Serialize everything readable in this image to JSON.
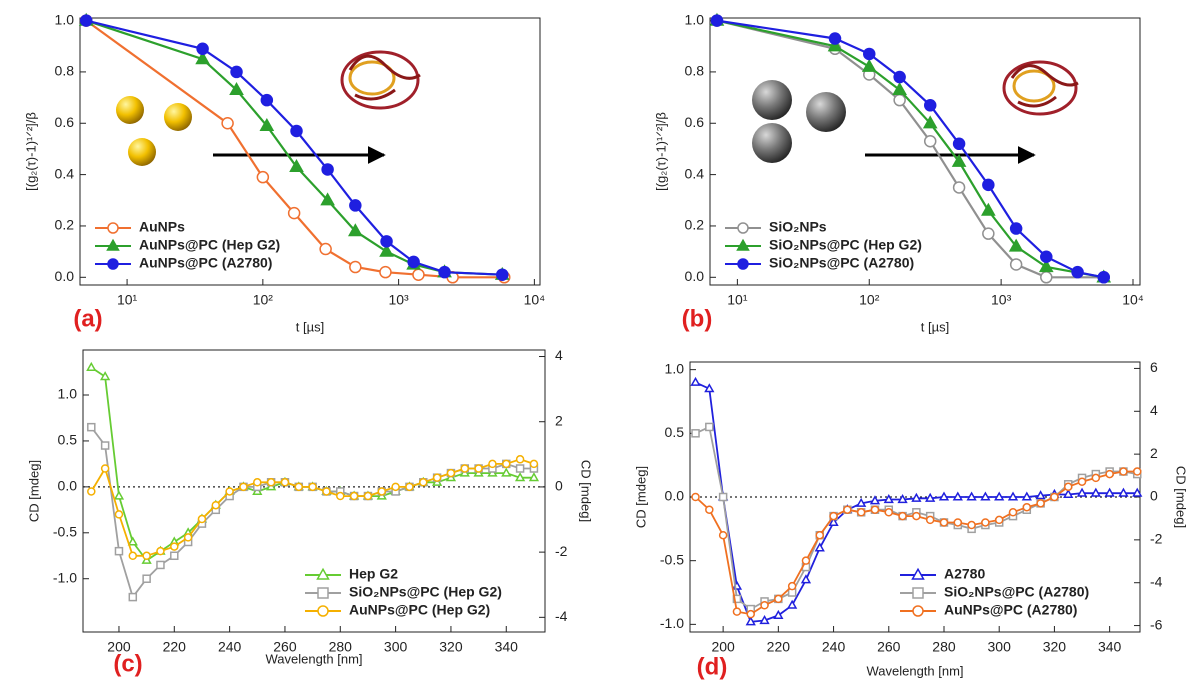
{
  "chart_data": [
    {
      "type": "line",
      "label": "(a)",
      "xlabel": "t [µs]",
      "ylabel": "[(g₂(τ)-1)¹ᐟ²]/β",
      "xscale": "log",
      "xlim": [
        4.5,
        11000
      ],
      "ylim": [
        -0.03,
        1.01
      ],
      "xticks": [
        {
          "value": 10,
          "label": "10¹"
        },
        {
          "value": 100,
          "label": "10²"
        },
        {
          "value": 1000,
          "label": "10³"
        },
        {
          "value": 10000,
          "label": "10⁴"
        }
      ],
      "yticks": [
        {
          "value": 0,
          "label": "0.0"
        },
        {
          "value": 0.2,
          "label": "0.2"
        },
        {
          "value": 0.4,
          "label": "0.4"
        },
        {
          "value": 0.6,
          "label": "0.6"
        },
        {
          "value": 0.8,
          "label": "0.8"
        },
        {
          "value": 1,
          "label": "1.0"
        }
      ],
      "legend": "lower left",
      "series": [
        {
          "name": "AuNPs",
          "color": "#f07030",
          "marker": "circle-open",
          "x": [
            5,
            55,
            100,
            170,
            290,
            480,
            800,
            1400,
            2500,
            6000
          ],
          "values": [
            1.0,
            0.6,
            0.39,
            0.25,
            0.11,
            0.04,
            0.02,
            0.01,
            0.0,
            0.0
          ]
        },
        {
          "name": "AuNPs@PC (Hep G2)",
          "color": "#2ca02c",
          "marker": "triangle",
          "x": [
            5,
            36,
            64,
            107,
            177,
            300,
            480,
            815,
            1290,
            2180,
            5800
          ],
          "values": [
            1.0,
            0.85,
            0.73,
            0.59,
            0.43,
            0.3,
            0.18,
            0.1,
            0.05,
            0.02,
            0.01
          ]
        },
        {
          "name": "AuNPs@PC (A2780)",
          "color": "#1f1fe0",
          "marker": "circle",
          "x": [
            5,
            36,
            64,
            107,
            177,
            300,
            480,
            815,
            1290,
            2180,
            5800
          ],
          "values": [
            1.0,
            0.89,
            0.8,
            0.69,
            0.57,
            0.42,
            0.28,
            0.14,
            0.06,
            0.02,
            0.01
          ]
        }
      ]
    },
    {
      "type": "line",
      "label": "(b)",
      "xlabel": "t [µs]",
      "ylabel": "[(g₂(τ)-1)¹ᐟ²]/β",
      "xscale": "log",
      "xlim": [
        6.2,
        11300
      ],
      "ylim": [
        -0.03,
        1.01
      ],
      "xticks": [
        {
          "value": 10,
          "label": "10¹"
        },
        {
          "value": 100,
          "label": "10²"
        },
        {
          "value": 1000,
          "label": "10³"
        },
        {
          "value": 10000,
          "label": "10⁴"
        }
      ],
      "yticks": [
        {
          "value": 0,
          "label": "0.0"
        },
        {
          "value": 0.2,
          "label": "0.2"
        },
        {
          "value": 0.4,
          "label": "0.4"
        },
        {
          "value": 0.6,
          "label": "0.6"
        },
        {
          "value": 0.8,
          "label": "0.8"
        },
        {
          "value": 1,
          "label": "1.0"
        }
      ],
      "legend": "lower left",
      "series": [
        {
          "name": "SiO₂NPs",
          "color": "#909090",
          "marker": "circle-open",
          "x": [
            7,
            55,
            100,
            170,
            290,
            480,
            800,
            1300,
            2200,
            6000
          ],
          "values": [
            1.0,
            0.89,
            0.79,
            0.69,
            0.53,
            0.35,
            0.17,
            0.05,
            0.0,
            0.0
          ]
        },
        {
          "name": "SiO₂NPs@PC (Hep G2)",
          "color": "#2ca02c",
          "marker": "triangle",
          "x": [
            7,
            55,
            100,
            170,
            290,
            480,
            800,
            1300,
            2200,
            6000
          ],
          "values": [
            1.0,
            0.9,
            0.82,
            0.73,
            0.6,
            0.45,
            0.26,
            0.12,
            0.04,
            0.0
          ]
        },
        {
          "name": "SiO₂NPs@PC (A2780)",
          "color": "#1f1fe0",
          "marker": "circle",
          "x": [
            7,
            55,
            100,
            170,
            290,
            480,
            800,
            1300,
            2200,
            3800,
            6000
          ],
          "values": [
            1.0,
            0.93,
            0.87,
            0.78,
            0.67,
            0.52,
            0.36,
            0.19,
            0.08,
            0.02,
            0.0
          ]
        }
      ]
    },
    {
      "type": "line",
      "label": "(c)",
      "xlabel": "Wavelength [nm]",
      "ylabel": "CD [mdeg]",
      "y2label": "CD [mdeg]",
      "xlim": [
        187,
        354
      ],
      "ylim": [
        -1.58,
        1.49
      ],
      "y2lim": [
        -4.45,
        4.2
      ],
      "zero_line": true,
      "xticks": [
        200,
        220,
        240,
        260,
        280,
        300,
        320,
        340
      ],
      "yticks": [
        {
          "value": -1,
          "label": "-1.0"
        },
        {
          "value": -0.5,
          "label": "-0.5"
        },
        {
          "value": 0,
          "label": "0.0"
        },
        {
          "value": 0.5,
          "label": "0.5"
        },
        {
          "value": 1,
          "label": "1.0"
        }
      ],
      "y2ticks": [
        -4,
        -2,
        0,
        2,
        4
      ],
      "legend": "lower right",
      "x": [
        190,
        195,
        200,
        205,
        210,
        215,
        220,
        225,
        230,
        235,
        240,
        245,
        250,
        255,
        260,
        265,
        270,
        275,
        280,
        285,
        290,
        295,
        300,
        305,
        310,
        315,
        320,
        325,
        330,
        335,
        340,
        345,
        350
      ],
      "series": [
        {
          "name": "Hep G2",
          "color": "#66cc33",
          "marker": "triangle-open",
          "values": [
            1.3,
            1.2,
            -0.1,
            -0.6,
            -0.8,
            -0.7,
            -0.6,
            -0.5,
            -0.35,
            -0.2,
            -0.05,
            0.0,
            -0.05,
            0.0,
            0.05,
            0.0,
            0.0,
            -0.05,
            -0.05,
            -0.1,
            -0.1,
            -0.1,
            -0.05,
            0.0,
            0.05,
            0.05,
            0.1,
            0.15,
            0.15,
            0.15,
            0.15,
            0.1,
            0.1
          ]
        },
        {
          "name": "SiO₂NPs@PC (Hep G2)",
          "color": "#a0a0a0",
          "marker": "square-open",
          "values": [
            0.65,
            0.45,
            -0.7,
            -1.2,
            -1.0,
            -0.85,
            -0.75,
            -0.6,
            -0.4,
            -0.25,
            -0.1,
            0.0,
            0.0,
            0.05,
            0.05,
            0.0,
            0.0,
            -0.05,
            -0.05,
            -0.1,
            -0.1,
            -0.05,
            -0.05,
            0.0,
            0.05,
            0.1,
            0.15,
            0.2,
            0.2,
            0.2,
            0.25,
            0.2,
            0.2
          ]
        },
        {
          "name": "AuNPs@PC (Hep G2)",
          "color": "#f5b000",
          "marker": "circle-open",
          "values": [
            -0.05,
            0.2,
            -0.3,
            -0.75,
            -0.75,
            -0.7,
            -0.65,
            -0.55,
            -0.35,
            -0.2,
            -0.05,
            0.0,
            0.05,
            0.05,
            0.05,
            0.0,
            0.0,
            -0.05,
            -0.1,
            -0.1,
            -0.1,
            -0.05,
            0.0,
            0.0,
            0.05,
            0.1,
            0.15,
            0.2,
            0.2,
            0.25,
            0.25,
            0.3,
            0.25
          ]
        }
      ]
    },
    {
      "type": "line",
      "label": "(d)",
      "xlabel": "Wavelength [nm]",
      "ylabel": "CD [mdeg]",
      "y2label": "CD [mdeg]",
      "xlim": [
        188,
        351
      ],
      "ylim": [
        -1.06,
        1.06
      ],
      "y2lim": [
        -6.3,
        6.3
      ],
      "zero_line": true,
      "xticks": [
        200,
        220,
        240,
        260,
        280,
        300,
        320,
        340
      ],
      "yticks": [
        {
          "value": -1,
          "label": "-1.0"
        },
        {
          "value": -0.5,
          "label": "-0.5"
        },
        {
          "value": 0,
          "label": "0.0"
        },
        {
          "value": 0.5,
          "label": "0.5"
        },
        {
          "value": 1,
          "label": "1.0"
        }
      ],
      "y2ticks": [
        -6,
        -4,
        -2,
        0,
        2,
        4,
        6
      ],
      "legend": "lower right",
      "x": [
        190,
        195,
        200,
        205,
        210,
        215,
        220,
        225,
        230,
        235,
        240,
        245,
        250,
        255,
        260,
        265,
        270,
        275,
        280,
        285,
        290,
        295,
        300,
        305,
        310,
        315,
        320,
        325,
        330,
        335,
        340,
        345,
        350
      ],
      "series": [
        {
          "name": "A2780",
          "color": "#2020dd",
          "marker": "triangle-open",
          "values": [
            0.9,
            0.85,
            0.0,
            -0.7,
            -0.98,
            -0.97,
            -0.93,
            -0.85,
            -0.65,
            -0.4,
            -0.2,
            -0.1,
            -0.05,
            -0.03,
            -0.02,
            -0.02,
            -0.01,
            -0.01,
            0.0,
            0.0,
            0.0,
            0.0,
            0.0,
            0.0,
            0.0,
            0.01,
            0.02,
            0.02,
            0.03,
            0.03,
            0.03,
            0.03,
            0.03
          ]
        },
        {
          "name": "SiO₂NPs@PC (A2780)",
          "color": "#a0a0a0",
          "marker": "square-open",
          "values": [
            0.5,
            0.55,
            0.0,
            -0.8,
            -0.88,
            -0.82,
            -0.8,
            -0.75,
            -0.55,
            -0.3,
            -0.15,
            -0.1,
            -0.12,
            -0.1,
            -0.1,
            -0.15,
            -0.12,
            -0.15,
            -0.2,
            -0.22,
            -0.25,
            -0.22,
            -0.2,
            -0.15,
            -0.1,
            -0.05,
            0.0,
            0.1,
            0.15,
            0.18,
            0.2,
            0.2,
            0.18
          ]
        },
        {
          "name": "AuNPs@PC (A2780)",
          "color": "#f07020",
          "marker": "circle-open",
          "values": [
            0.0,
            -0.1,
            -0.3,
            -0.9,
            -0.92,
            -0.85,
            -0.8,
            -0.7,
            -0.5,
            -0.3,
            -0.15,
            -0.1,
            -0.12,
            -0.1,
            -0.12,
            -0.15,
            -0.15,
            -0.18,
            -0.2,
            -0.2,
            -0.22,
            -0.2,
            -0.18,
            -0.12,
            -0.08,
            -0.05,
            0.0,
            0.08,
            0.12,
            0.15,
            0.18,
            0.2,
            0.2
          ]
        }
      ]
    }
  ]
}
